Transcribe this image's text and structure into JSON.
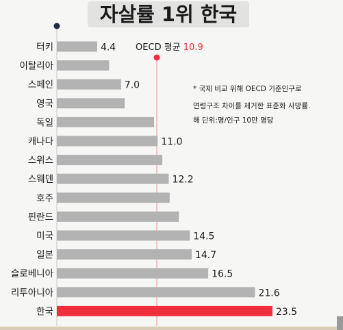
{
  "title": "자살률 1위 한국",
  "notes": [
    "* 국제 비교 위해 OECD 기준인구로",
    "연령구조 차이를 제거한 표준화 사망률.",
    "해 단위:명/인구 10만 명당"
  ],
  "colors": {
    "bar": "#b3b3b3",
    "highlight": "#ef2f3c",
    "avg_line": "#f08a92",
    "avg_value": "#ef2f3c",
    "axis_dot": "#1f2a44"
  },
  "chart_data": {
    "type": "bar",
    "orientation": "horizontal",
    "title": "자살률 1위 한국",
    "categories": [
      "터키",
      "이탈리아",
      "스페인",
      "영국",
      "독일",
      "캐나다",
      "스위스",
      "스웨덴",
      "호주",
      "핀란드",
      "미국",
      "일본",
      "슬로베니아",
      "리투아니아",
      "한국"
    ],
    "values": [
      4.4,
      5.7,
      7.0,
      7.4,
      10.6,
      11.0,
      11.5,
      12.2,
      12.3,
      13.3,
      14.5,
      14.7,
      16.5,
      21.6,
      23.5
    ],
    "labels": [
      "4.4",
      "",
      "7.0",
      "",
      "",
      "11.0",
      "",
      "12.2",
      "",
      "",
      "14.5",
      "14.7",
      "16.5",
      "21.6",
      "23.5"
    ],
    "highlight": "한국",
    "reference_line": {
      "label": "OECD 평균",
      "value": 10.9,
      "value_text": "10.9"
    },
    "xlim": [
      0,
      24
    ],
    "grid": false
  }
}
